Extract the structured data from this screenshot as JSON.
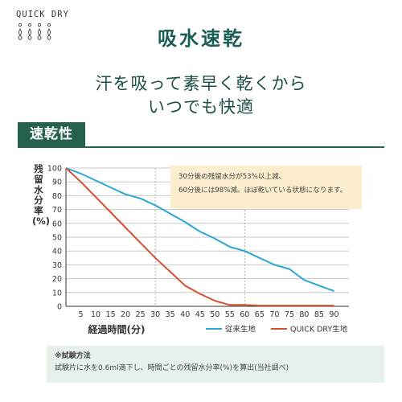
{
  "brand": {
    "name": "QUICK DRY",
    "logo_icon": "water-drops-icon"
  },
  "header": {
    "title": "吸水速乾",
    "subtitle_line1": "汗を吸って素早く乾くから",
    "subtitle_line2": "いつでも快適"
  },
  "section": {
    "label": "速乾性"
  },
  "note": {
    "line1": "30分後の残留水分が53%以上減、",
    "line2": "60分後には98%減。ほぼ乾いている状態になります。"
  },
  "method": {
    "title": "※試験方法",
    "text": "試験片に水を0.6ml滴下し、時間ごとの残留水分率(%)を算出(当社調べ)"
  },
  "colors": {
    "accent": "#1a5f55",
    "tab": "#26604f",
    "conventional": "#2aa8d4",
    "quickdry": "#d4502e",
    "note_bg": "#fbeecf",
    "method_bg": "#e6f2e9"
  },
  "chart_data": {
    "type": "line",
    "xlabel": "経過時間(分)",
    "ylabel": "残留水分率(%)",
    "xlim": [
      0,
      95
    ],
    "ylim": [
      0,
      100
    ],
    "xticks": [
      5,
      10,
      15,
      20,
      25,
      30,
      35,
      40,
      45,
      50,
      55,
      60,
      65,
      70,
      75,
      80,
      85,
      90
    ],
    "yticks": [
      0,
      10,
      20,
      30,
      40,
      50,
      60,
      70,
      80,
      90,
      100
    ],
    "grid": true,
    "legend_position": "bottom-right",
    "highlight_x": [
      30,
      60
    ],
    "series": [
      {
        "name": "従来生地",
        "color": "#2aa8d4",
        "x": [
          0,
          5,
          10,
          15,
          20,
          25,
          30,
          35,
          40,
          45,
          50,
          55,
          60,
          65,
          70,
          75,
          80,
          85,
          90
        ],
        "y": [
          100,
          96,
          91,
          86,
          81,
          78,
          73,
          67,
          61,
          54,
          49,
          43,
          40,
          35,
          30,
          27,
          19,
          15,
          11
        ]
      },
      {
        "name": "QUICK DRY生地",
        "color": "#d4502e",
        "x": [
          0,
          5,
          10,
          15,
          20,
          25,
          30,
          35,
          40,
          45,
          50,
          55,
          60,
          65,
          70,
          75,
          80,
          85,
          90
        ],
        "y": [
          100,
          90,
          79,
          68,
          57,
          46,
          35,
          25,
          15,
          9,
          4,
          1,
          1,
          0.5,
          0.5,
          0.5,
          0.5,
          0.5,
          0.5
        ]
      }
    ]
  }
}
